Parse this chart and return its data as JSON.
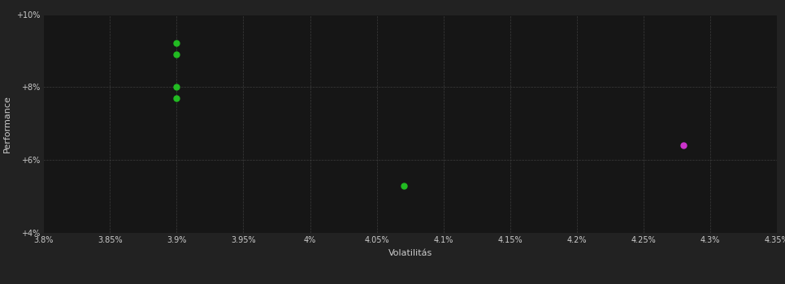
{
  "background_color": "#222222",
  "plot_bg_color": "#161616",
  "grid_color": "#404040",
  "text_color": "#cccccc",
  "xlabel": "Volatilitás",
  "ylabel": "Performance",
  "xlim": [
    0.038,
    0.0435
  ],
  "ylim": [
    0.04,
    0.1
  ],
  "yticks": [
    0.04,
    0.06,
    0.08,
    0.1
  ],
  "ytick_labels": [
    "+4%",
    "+6%",
    "+8%",
    "+10%"
  ],
  "xticks": [
    0.038,
    0.0385,
    0.039,
    0.0395,
    0.04,
    0.0405,
    0.041,
    0.0415,
    0.042,
    0.0425,
    0.043,
    0.0435
  ],
  "xtick_labels": [
    "3.8%",
    "3.85%",
    "3.9%",
    "3.95%",
    "4%",
    "4.05%",
    "4.1%",
    "4.15%",
    "4.2%",
    "4.25%",
    "4.3%",
    "4.35%"
  ],
  "green_points": [
    [
      0.039,
      0.092
    ],
    [
      0.039,
      0.089
    ],
    [
      0.039,
      0.08
    ],
    [
      0.039,
      0.077
    ],
    [
      0.0407,
      0.053
    ]
  ],
  "magenta_points": [
    [
      0.0428,
      0.064
    ]
  ],
  "green_color": "#22bb22",
  "magenta_color": "#cc33cc",
  "point_size": 25
}
